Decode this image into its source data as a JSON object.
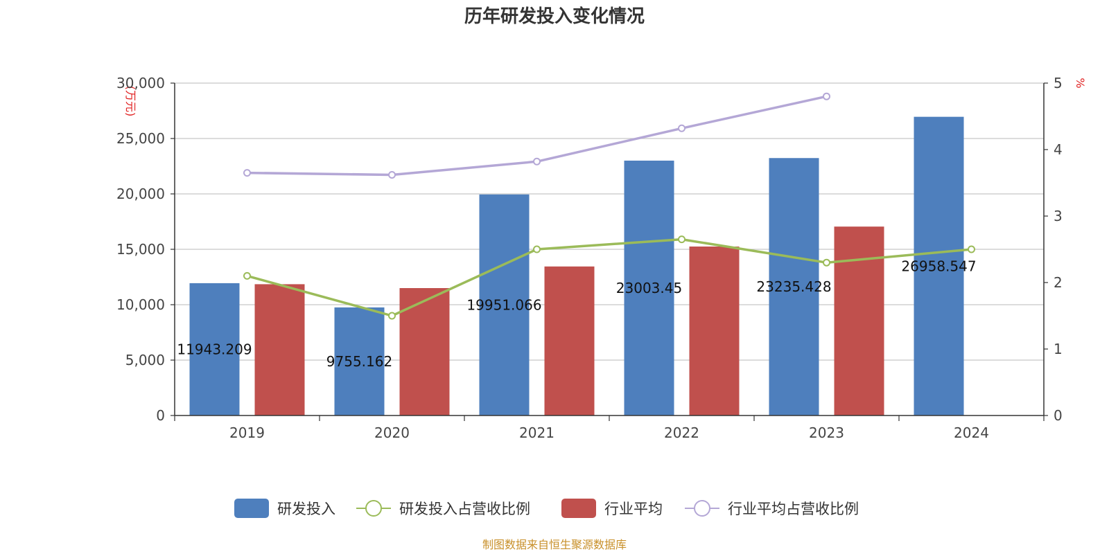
{
  "chart_data": {
    "type": "bar",
    "title": "历年研发投入变化情况",
    "categories": [
      "2019",
      "2020",
      "2021",
      "2022",
      "2023",
      "2024"
    ],
    "left_axis": {
      "unit_label": "(万元)",
      "min": 0,
      "max": 30000,
      "ticks": [
        0,
        5000,
        10000,
        15000,
        20000,
        25000,
        30000
      ],
      "tick_labels": [
        "0",
        "5,000",
        "10,000",
        "15,000",
        "20,000",
        "25,000",
        "30,000"
      ]
    },
    "right_axis": {
      "unit_label": "%",
      "min": 0,
      "max": 5,
      "ticks": [
        0,
        1,
        2,
        3,
        4,
        5
      ],
      "tick_labels": [
        "0",
        "1",
        "2",
        "3",
        "4",
        "5"
      ]
    },
    "grid": true,
    "legend_position": "bottom",
    "series": [
      {
        "name": "研发投入",
        "type": "bar",
        "axis": "left",
        "color": "#4e7fbd",
        "values": [
          11943.209,
          9755.162,
          19951.066,
          23003.45,
          23235.428,
          26958.547
        ],
        "labels": [
          "11943.209",
          "9755.162",
          "19951.066",
          "23003.45",
          "23235.428",
          "26958.547"
        ]
      },
      {
        "name": "研发投入占营收比例",
        "type": "line",
        "axis": "right",
        "color": "#9bbb59",
        "values": [
          2.1,
          1.5,
          2.5,
          2.65,
          2.3,
          2.5
        ]
      },
      {
        "name": "行业平均",
        "type": "bar",
        "axis": "left",
        "color": "#c0504d",
        "values": [
          11850,
          11500,
          13450,
          15250,
          17050,
          null
        ]
      },
      {
        "name": "行业平均占营收比例",
        "type": "line",
        "axis": "right",
        "color": "#b4a7d6",
        "values": [
          3.65,
          3.62,
          3.82,
          4.32,
          4.8,
          null
        ]
      }
    ]
  },
  "footer": {
    "source": "制图数据来自恒生聚源数据库"
  }
}
